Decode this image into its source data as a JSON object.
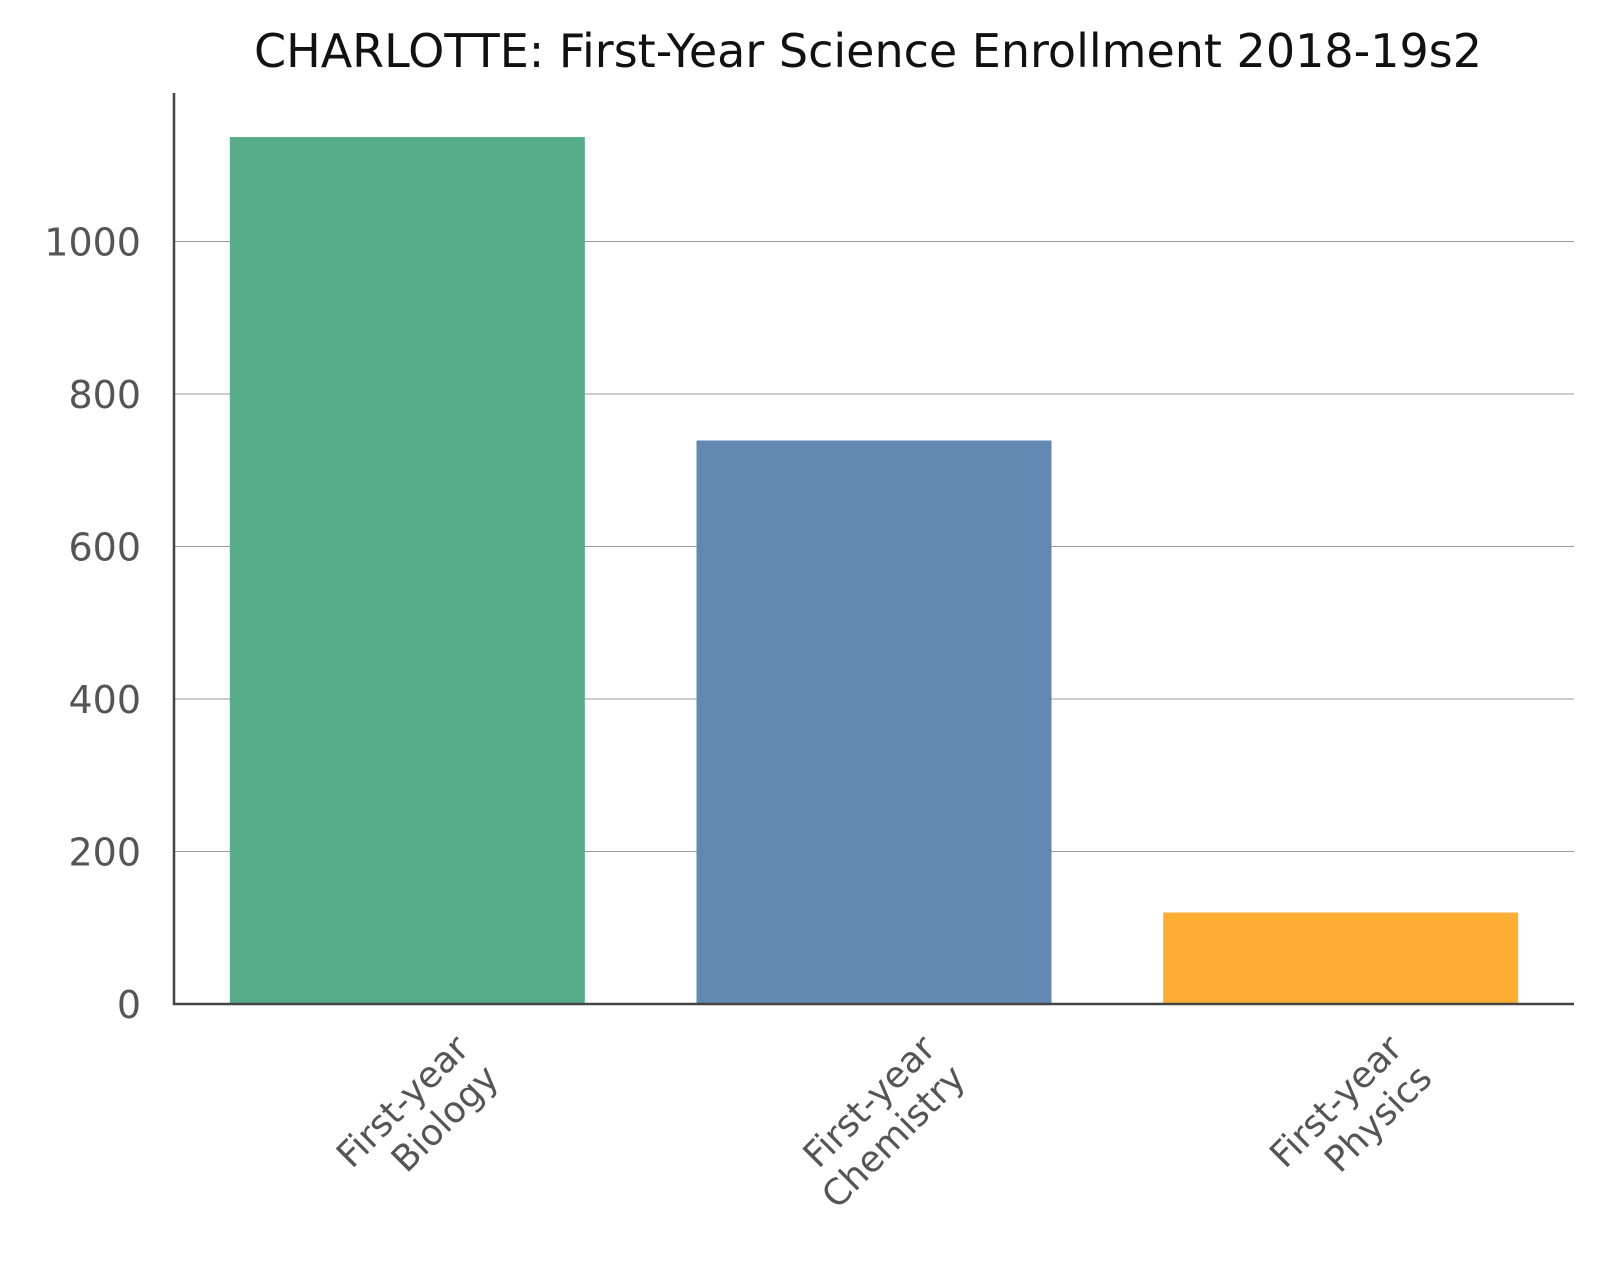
{
  "chart_data": {
    "type": "bar",
    "title": "CHARLOTTE: First-Year Science Enrollment 2018-19s2",
    "xlabel": "",
    "ylabel": "",
    "categories": [
      "First-year Biology",
      "First-year Chemistry",
      "First-year Physics"
    ],
    "category_label_lines": [
      [
        "First-year",
        "Biology"
      ],
      [
        "First-year",
        "Chemistry"
      ],
      [
        "First-year",
        "Physics"
      ]
    ],
    "values": [
      1137,
      739,
      120
    ],
    "colors": [
      "#57ad89",
      "#6288b2",
      "#fead35"
    ],
    "ylim": [
      0,
      1195
    ],
    "yticks": [
      0,
      200,
      400,
      600,
      800,
      1000
    ],
    "grid": true,
    "legend": "none"
  }
}
